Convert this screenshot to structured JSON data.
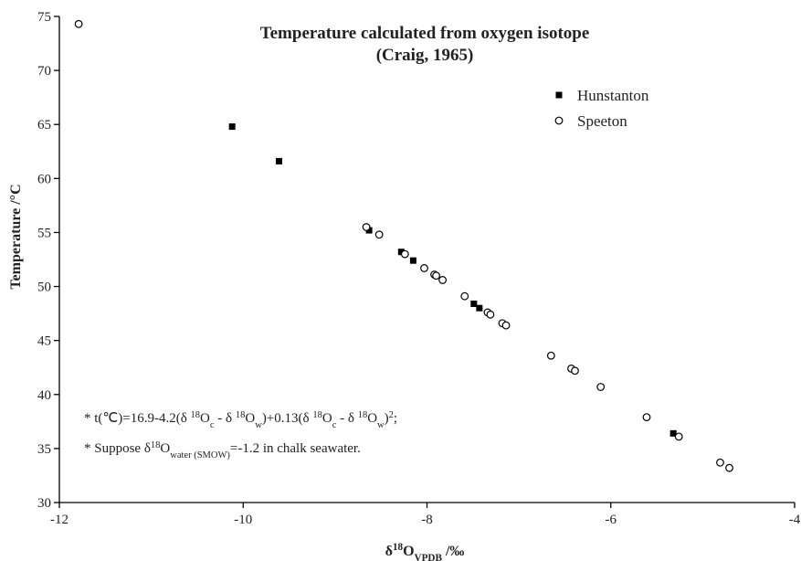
{
  "chart_data": {
    "type": "scatter",
    "title": [
      "Temperature calculated from oxygen isotope",
      "(Craig, 1965)"
    ],
    "xlabel": [
      "δ",
      {
        "sup": "18"
      },
      "O",
      {
        "sub": "VPDB"
      },
      " /‰"
    ],
    "ylabel": "Temperature /°C",
    "annotations": [
      [
        "* t(℃)=16.9-4.2(δ ",
        {
          "sup": "18"
        },
        "O",
        {
          "sub": "c"
        },
        " - δ ",
        {
          "sup": "18"
        },
        "O",
        {
          "sub": "w"
        },
        ")+0.13(δ ",
        {
          "sup": "18"
        },
        "O",
        {
          "sub": "c"
        },
        " - δ ",
        {
          "sup": "18"
        },
        "O",
        {
          "sub": "w"
        },
        ")",
        {
          "sup": "2"
        },
        ";"
      ],
      [
        "* Suppose δ",
        {
          "sup": "18"
        },
        "O",
        {
          "sub": "water (SMOW)"
        },
        "=-1.2 in chalk seawater."
      ]
    ],
    "xlim": [
      -12,
      -4
    ],
    "xticks": [
      -12,
      -10,
      -8,
      -6,
      -4
    ],
    "ylim": [
      30,
      75
    ],
    "yticks": [
      30,
      35,
      40,
      45,
      50,
      55,
      60,
      65,
      70,
      75
    ],
    "legend": "top-right",
    "series": [
      {
        "name": "Hunstanton",
        "color": "#000000",
        "marker": "square",
        "x": [
          -10.12,
          -9.61,
          -8.63,
          -8.28,
          -8.15,
          -7.49,
          -7.43,
          -5.32
        ],
        "values": [
          64.8,
          61.6,
          55.2,
          53.2,
          52.4,
          48.4,
          48.0,
          36.4
        ]
      },
      {
        "name": "Speeton",
        "color": "#000000",
        "marker": "circle",
        "x": [
          -11.79,
          -8.66,
          -8.52,
          -8.24,
          -8.03,
          -7.92,
          -7.9,
          -7.83,
          -7.59,
          -7.34,
          -7.31,
          -7.18,
          -7.14,
          -6.65,
          -6.43,
          -6.39,
          -6.11,
          -5.61,
          -5.26,
          -4.81,
          -4.71
        ],
        "values": [
          74.3,
          55.5,
          54.8,
          53.0,
          51.7,
          51.1,
          51.0,
          50.6,
          49.1,
          47.6,
          47.4,
          46.6,
          46.4,
          43.6,
          42.4,
          42.2,
          40.7,
          37.9,
          36.1,
          33.7,
          33.2
        ]
      }
    ]
  }
}
